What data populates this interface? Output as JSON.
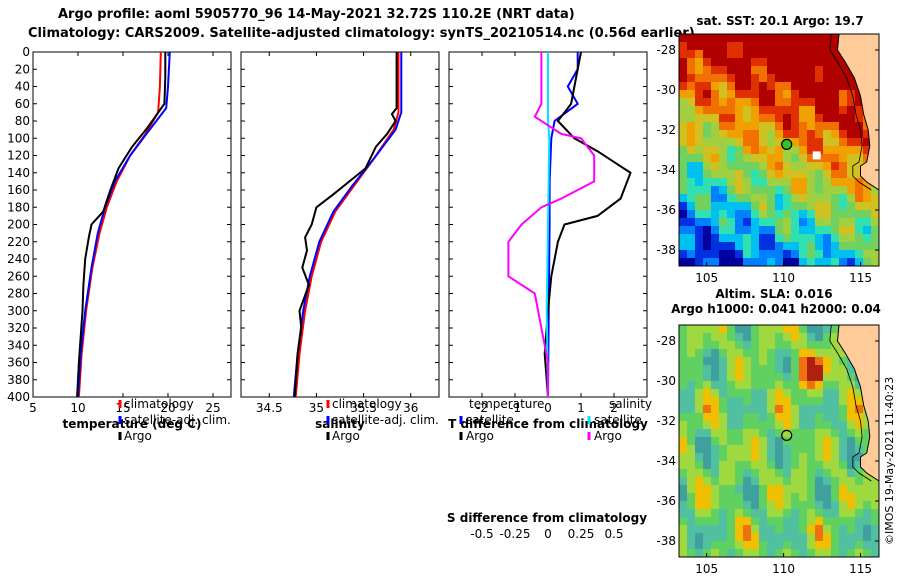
{
  "header": {
    "line1": "Argo profile: aoml 5905770_96 14-May-2021 32.72S 110.2E (NRT data)",
    "line2": "Climatology: CARS2009. Satellite-adjusted climatology: synTS_20210514.nc (0.56d earlier)"
  },
  "map1": {
    "title": "sat. SST: 20.1 Argo: 19.7",
    "lat_ticks": [
      "-28",
      "-30",
      "-32",
      "-34",
      "-36",
      "-38"
    ],
    "lon_ticks": [
      "105",
      "110",
      "115"
    ],
    "argo_lat": -32.72,
    "argo_lon": 110.2
  },
  "map2": {
    "title_line1": "Altim. SLA: 0.016",
    "title_line2": "Argo h1000: 0.041 h2000: 0.04",
    "lat_ticks": [
      "-28",
      "-30",
      "-32",
      "-34",
      "-36",
      "-38"
    ],
    "lon_ticks": [
      "105",
      "110",
      "115"
    ]
  },
  "credit": "©IMOS 19-May-2021 11:40:23",
  "colors": {
    "climatology": "#ff0000",
    "satellite": "#0000ff",
    "argo": "#000000",
    "sat_salinity": "#00e5ff",
    "argo_salinity": "#ff00ff"
  },
  "chart_data": [
    {
      "type": "line",
      "name": "temperature",
      "xlabel": "temperature (deg C)",
      "xlim": [
        5,
        27
      ],
      "ylim": [
        0,
        400
      ],
      "xticks": [
        "5",
        "10",
        "15",
        "20",
        "25"
      ],
      "yticks": [
        "0",
        "20",
        "40",
        "60",
        "80",
        "100",
        "120",
        "140",
        "160",
        "180",
        "200",
        "220",
        "240",
        "260",
        "280",
        "300",
        "320",
        "340",
        "360",
        "380",
        "400"
      ],
      "legend": [
        "climatology",
        "satellite-adj. clim.",
        "Argo"
      ],
      "series": [
        {
          "name": "climatology",
          "color": "#ff0000",
          "points": [
            [
              19.2,
              0
            ],
            [
              19.1,
              40
            ],
            [
              18.9,
              70
            ],
            [
              17.5,
              95
            ],
            [
              15.8,
              120
            ],
            [
              14.3,
              150
            ],
            [
              13.2,
              180
            ],
            [
              12.4,
              210
            ],
            [
              11.6,
              250
            ],
            [
              10.9,
              300
            ],
            [
              10.4,
              350
            ],
            [
              10.1,
              400
            ]
          ]
        },
        {
          "name": "satellite-adj. clim.",
          "color": "#0000ff",
          "points": [
            [
              20.2,
              0
            ],
            [
              20.0,
              40
            ],
            [
              19.8,
              65
            ],
            [
              17.6,
              95
            ],
            [
              15.8,
              120
            ],
            [
              14.1,
              150
            ],
            [
              13.0,
              180
            ],
            [
              12.2,
              210
            ],
            [
              11.5,
              250
            ],
            [
              10.8,
              300
            ],
            [
              10.3,
              350
            ],
            [
              10.0,
              400
            ]
          ]
        },
        {
          "name": "Argo",
          "color": "#000000",
          "points": [
            [
              19.7,
              0
            ],
            [
              19.7,
              30
            ],
            [
              19.6,
              60
            ],
            [
              17.7,
              88
            ],
            [
              16.0,
              110
            ],
            [
              14.5,
              135
            ],
            [
              13.6,
              160
            ],
            [
              12.8,
              185
            ],
            [
              11.5,
              200
            ],
            [
              11.2,
              215
            ],
            [
              10.8,
              240
            ],
            [
              10.6,
              270
            ],
            [
              10.5,
              300
            ],
            [
              10.3,
              330
            ],
            [
              10.1,
              360
            ],
            [
              9.9,
              400
            ]
          ]
        }
      ]
    },
    {
      "type": "line",
      "name": "salinity",
      "xlabel": "salinity",
      "xlim": [
        34.2,
        36.3
      ],
      "ylim": [
        0,
        400
      ],
      "xticks": [
        "34.5",
        "35",
        "35.5",
        "36"
      ],
      "legend": [
        "climatology",
        "satellite-adj. clim.",
        "Argo"
      ],
      "series": [
        {
          "name": "climatology",
          "color": "#ff0000",
          "points": [
            [
              35.87,
              0
            ],
            [
              35.87,
              70
            ],
            [
              35.82,
              90
            ],
            [
              35.6,
              125
            ],
            [
              35.4,
              155
            ],
            [
              35.2,
              185
            ],
            [
              35.05,
              220
            ],
            [
              34.95,
              260
            ],
            [
              34.88,
              300
            ],
            [
              34.82,
              350
            ],
            [
              34.78,
              400
            ]
          ]
        },
        {
          "name": "satellite-adj. clim.",
          "color": "#0000ff",
          "points": [
            [
              35.9,
              0
            ],
            [
              35.9,
              70
            ],
            [
              35.84,
              90
            ],
            [
              35.6,
              125
            ],
            [
              35.38,
              155
            ],
            [
              35.18,
              185
            ],
            [
              35.03,
              220
            ],
            [
              34.93,
              260
            ],
            [
              34.86,
              300
            ],
            [
              34.8,
              350
            ],
            [
              34.76,
              400
            ]
          ]
        },
        {
          "name": "Argo",
          "color": "#000000",
          "points": [
            [
              35.85,
              0
            ],
            [
              35.85,
              65
            ],
            [
              35.8,
              72
            ],
            [
              35.84,
              80
            ],
            [
              35.75,
              95
            ],
            [
              35.63,
              110
            ],
            [
              35.52,
              135
            ],
            [
              35.35,
              150
            ],
            [
              35.18,
              165
            ],
            [
              35.0,
              180
            ],
            [
              34.95,
              200
            ],
            [
              34.88,
              215
            ],
            [
              34.9,
              230
            ],
            [
              34.85,
              250
            ],
            [
              34.92,
              270
            ],
            [
              34.82,
              300
            ],
            [
              34.84,
              320
            ],
            [
              34.8,
              350
            ],
            [
              34.77,
              400
            ]
          ]
        }
      ]
    },
    {
      "type": "line",
      "name": "difference from climatology",
      "xlabel": "T difference from climatology",
      "xlabel_top": "S difference from climatology",
      "xlim": [
        -3,
        3
      ],
      "ylim": [
        0,
        400
      ],
      "xticks": [
        "-2",
        "-1",
        "0",
        "1",
        "2"
      ],
      "xticks_s": [
        "-0.5",
        "-0.25",
        "0",
        "0.25",
        "0.5"
      ],
      "legend_temperature": {
        "heading": "temperature",
        "items": [
          "satellite",
          "Argo"
        ]
      },
      "legend_salinity": {
        "heading": "salinity",
        "items": [
          "satellite",
          "Argo"
        ]
      },
      "series": [
        {
          "name": "T satellite",
          "color": "#0000ff",
          "points": [
            [
              0.9,
              0
            ],
            [
              0.9,
              20
            ],
            [
              0.6,
              40
            ],
            [
              0.9,
              60
            ],
            [
              0.2,
              80
            ],
            [
              0.1,
              100
            ],
            [
              0.05,
              150
            ],
            [
              0.05,
              200
            ],
            [
              0.02,
              300
            ],
            [
              0.0,
              400
            ]
          ]
        },
        {
          "name": "T Argo",
          "color": "#000000",
          "points": [
            [
              1.0,
              0
            ],
            [
              0.8,
              40
            ],
            [
              0.7,
              60
            ],
            [
              0.3,
              80
            ],
            [
              0.8,
              100
            ],
            [
              1.5,
              115
            ],
            [
              2.5,
              140
            ],
            [
              2.2,
              170
            ],
            [
              1.5,
              190
            ],
            [
              0.5,
              200
            ],
            [
              0.3,
              220
            ],
            [
              0.1,
              260
            ],
            [
              0.0,
              300
            ],
            [
              -0.1,
              350
            ],
            [
              0.0,
              400
            ]
          ]
        },
        {
          "name": "S satellite",
          "color": "#00e5ff",
          "points": [
            [
              0.0,
              0
            ],
            [
              0.0,
              80
            ],
            [
              0.01,
              100
            ],
            [
              0.0,
              200
            ],
            [
              -0.01,
              300
            ],
            [
              0.0,
              400
            ]
          ]
        },
        {
          "name": "S Argo",
          "color": "#ff00ff",
          "points": [
            [
              -0.05,
              0
            ],
            [
              -0.05,
              60
            ],
            [
              -0.1,
              75
            ],
            [
              0.1,
              95
            ],
            [
              0.25,
              100
            ],
            [
              0.35,
              120
            ],
            [
              0.35,
              150
            ],
            [
              0.1,
              170
            ],
            [
              -0.05,
              180
            ],
            [
              -0.2,
              200
            ],
            [
              -0.3,
              220
            ],
            [
              -0.3,
              260
            ],
            [
              -0.1,
              280
            ],
            [
              -0.05,
              320
            ],
            [
              0.0,
              360
            ],
            [
              0.0,
              400
            ]
          ]
        }
      ]
    }
  ]
}
